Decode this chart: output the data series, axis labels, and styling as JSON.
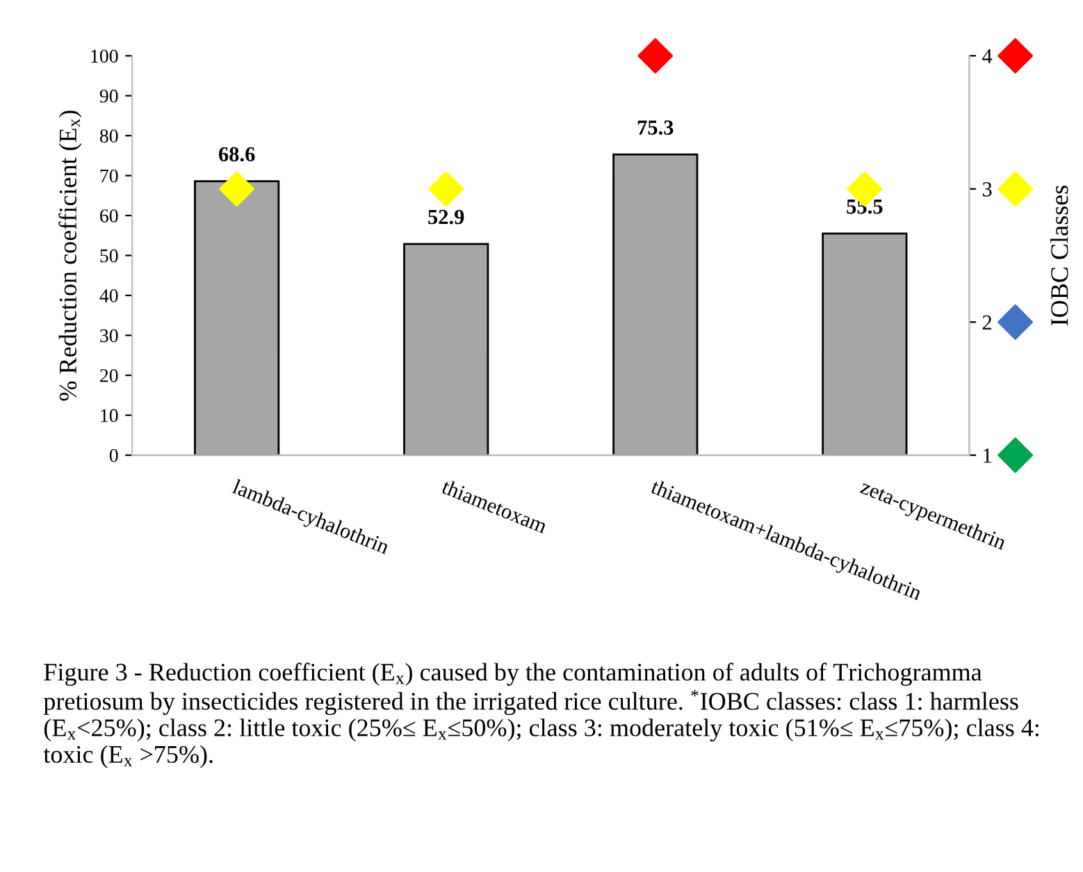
{
  "chart_data": {
    "type": "bar",
    "categories": [
      "lambda-cyhalothrin",
      "thiametoxam",
      "thiametoxam+lambda-cyhalothrin",
      "zeta-cypermethrin",
      null
    ],
    "ylabel": "% Reduction coefficient (E$_{x}$)",
    "y2label": "IOBC Classes",
    "series": [
      {
        "color": "#a6a6a6",
        "values": [
          68.6,
          52.9,
          75.3,
          55.5,
          null
        ],
        "value_labels": [
          "68.6",
          "52.9",
          "75.3",
          "55.5",
          null
        ]
      },
      {
        "type": "scatter",
        "axis": "y2",
        "colors": [
          "#ffff00",
          "#ffff00",
          "#ff0000",
          "#ffff00",
          null
        ],
        "values": [
          3,
          3,
          4,
          3,
          null
        ]
      },
      {
        "type": "scatter",
        "axis": "y2",
        "color": "#00a550",
        "values": [
          null,
          null,
          null,
          null,
          1
        ]
      },
      {
        "type": "scatter",
        "axis": "y2",
        "color": "#4472c4",
        "values": [
          null,
          null,
          null,
          null,
          2
        ]
      },
      {
        "type": "scatter",
        "axis": "y2",
        "color": "#ffff00",
        "values": [
          null,
          null,
          null,
          null,
          3
        ]
      },
      {
        "type": "scatter",
        "axis": "y2",
        "color": "#ff0000",
        "values": [
          null,
          null,
          null,
          null,
          4
        ]
      }
    ],
    "marker": "diamond",
    "grid": false,
    "legend": false,
    "ylim": [
      0,
      100
    ],
    "yticks": [
      0,
      10,
      20,
      30,
      40,
      50,
      60,
      70,
      80,
      90,
      100
    ],
    "y2lim": [
      1,
      4
    ],
    "y2ticks": [
      1,
      2,
      3,
      4
    ],
    "annotations": [
      "Figure 3 - Reduction coefficient (E$_{x}$) caused by the contamination of adults of Trichogramma pretiosum by insecticides registered in the irrigated rice culture. $^{*}$IOBC classes: class 1: harmless (E$_{x}$<25%); class 2: little toxic (25%≤ E$_{x}$≤50%); class 3: moderately toxic (51%≤ E$_{x}$≤75%); class 4: toxic (E$_{x}$ >75%)."
    ]
  }
}
